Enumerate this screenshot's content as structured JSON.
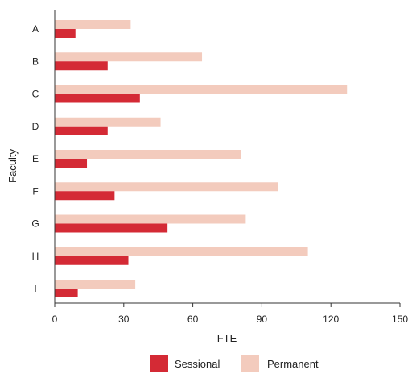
{
  "chart_data": {
    "type": "bar",
    "orientation": "horizontal",
    "categories": [
      "A",
      "B",
      "C",
      "D",
      "E",
      "F",
      "G",
      "H",
      "I"
    ],
    "series": [
      {
        "name": "Sessional",
        "color": "#d42a35",
        "values": [
          9,
          23,
          37,
          23,
          14,
          26,
          49,
          32,
          10
        ]
      },
      {
        "name": "Permanent",
        "color": "#f3cbbd",
        "values": [
          33,
          64,
          127,
          46,
          81,
          97,
          83,
          110,
          35
        ]
      }
    ],
    "xlabel": "FTE",
    "ylabel": "Faculty",
    "xlim": [
      0,
      150
    ],
    "xticks": [
      0,
      30,
      60,
      90,
      120,
      150
    ],
    "grid": false,
    "legend_position": "bottom"
  }
}
